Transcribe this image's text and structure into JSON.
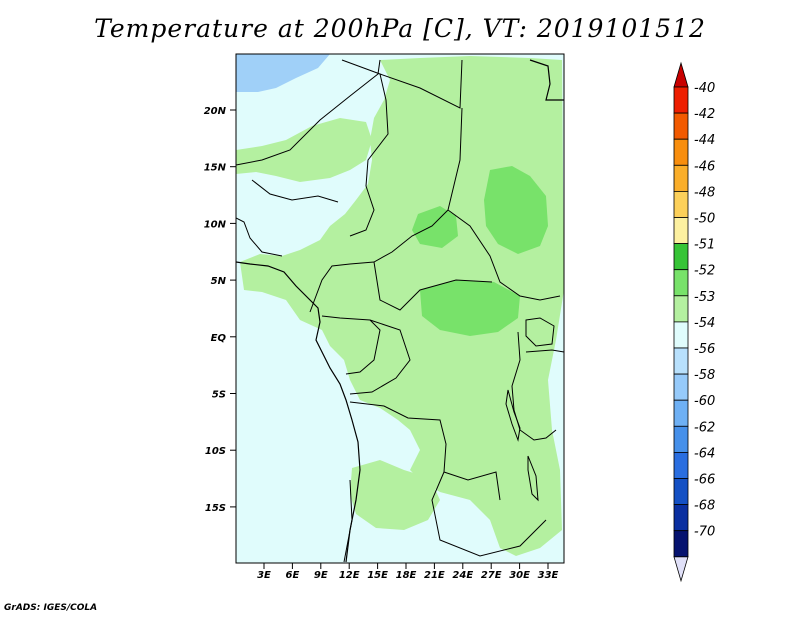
{
  "title": "Temperature at 200hPa [C], VT: 2019101512",
  "footer": "GrADS: IGES/COLA",
  "map": {
    "lat_ticks": [
      "20N",
      "15N",
      "10N",
      "5N",
      "EQ",
      "5S",
      "10S",
      "15S"
    ],
    "lon_ticks": [
      "3E",
      "6E",
      "9E",
      "12E",
      "15E",
      "18E",
      "21E",
      "24E",
      "27E",
      "30E",
      "33E"
    ],
    "colors": {
      "very_light_cyan": "#e0fcfc",
      "light_green": "#b4f0a0",
      "mid_green": "#78e26a",
      "blue_patch": "#a0d0f8"
    }
  },
  "colorbar": {
    "labels": [
      "-40",
      "-42",
      "-44",
      "-46",
      "-48",
      "-50",
      "-51",
      "-52",
      "-53",
      "-54",
      "-56",
      "-58",
      "-60",
      "-62",
      "-64",
      "-66",
      "-68",
      "-70"
    ],
    "colors": [
      "#ee1e00",
      "#f25a00",
      "#f88e0e",
      "#faae2a",
      "#fcd05a",
      "#fcf0a0",
      "#36c436",
      "#78e26a",
      "#b4f0a0",
      "#e0fcfc",
      "#b8e0fc",
      "#96cafa",
      "#6eb0f4",
      "#4690ea",
      "#2a6ee0",
      "#1450c4",
      "#0a2fa0",
      "#061370"
    ],
    "top_cap_color": "#c80000",
    "bottom_cap_color": "#e0e0f8"
  }
}
